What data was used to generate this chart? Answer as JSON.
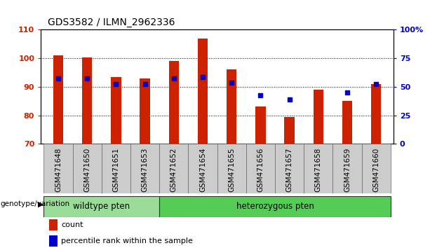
{
  "title": "GDS3582 / ILMN_2962336",
  "categories": [
    "GSM471648",
    "GSM471650",
    "GSM471651",
    "GSM471653",
    "GSM471652",
    "GSM471654",
    "GSM471655",
    "GSM471656",
    "GSM471657",
    "GSM471658",
    "GSM471659",
    "GSM471660"
  ],
  "bar_values": [
    101.0,
    100.2,
    93.5,
    93.0,
    99.0,
    107.0,
    96.0,
    83.0,
    79.5,
    89.0,
    85.0,
    91.0
  ],
  "dot_values_left_axis": [
    93.0,
    93.0,
    91.0,
    91.0,
    93.0,
    93.5,
    91.5,
    87.0,
    85.5,
    null,
    88.0,
    91.0
  ],
  "ylim_left": [
    70,
    110
  ],
  "ylim_right": [
    0,
    100
  ],
  "yticks_left": [
    70,
    80,
    90,
    100,
    110
  ],
  "yticks_right": [
    0,
    25,
    50,
    75,
    100
  ],
  "yticklabels_right": [
    "0",
    "25",
    "50",
    "75",
    "100%"
  ],
  "bar_color": "#cc2200",
  "dot_color": "#0000cc",
  "wildtype_label": "wildtype pten",
  "heterozygous_label": "heterozygous pten",
  "wildtype_count": 4,
  "heterozygous_count": 8,
  "wildtype_color": "#99dd99",
  "heterozygous_color": "#55cc55",
  "genotype_label": "genotype/variation",
  "legend_count": "count",
  "legend_percentile": "percentile rank within the sample",
  "bar_bottom": 70,
  "bar_color_rgb": "#cc2200",
  "dot_color_rgb": "#0000cc",
  "tick_area_color": "#cccccc",
  "tick_area_border": "#666666"
}
